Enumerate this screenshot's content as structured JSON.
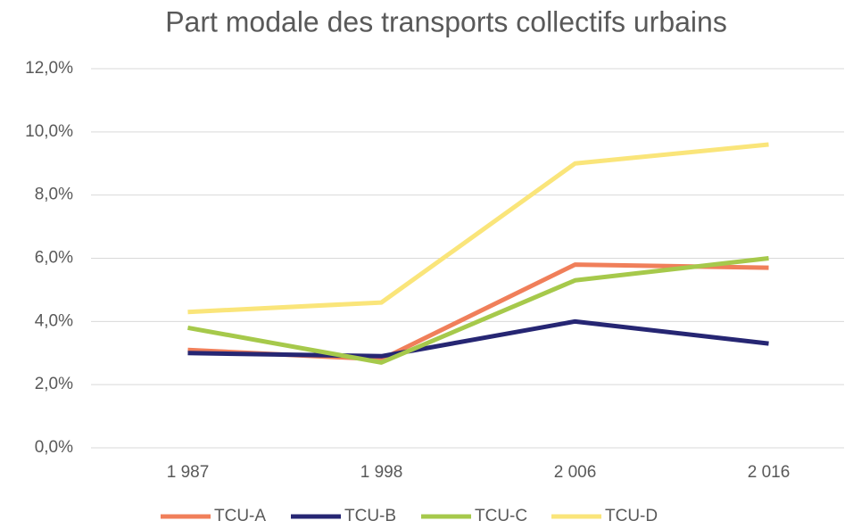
{
  "chart_data": {
    "type": "line",
    "title": "Part modale des transports collectifs urbains",
    "categories": [
      "1 987",
      "1 998",
      "2 006",
      "2 016"
    ],
    "series": [
      {
        "name": "TCU-A",
        "color": "#f07f5a",
        "values": [
          3.1,
          2.8,
          5.8,
          5.7
        ]
      },
      {
        "name": "TCU-B",
        "color": "#262673",
        "values": [
          3.0,
          2.9,
          4.0,
          3.3
        ]
      },
      {
        "name": "TCU-C",
        "color": "#a6c94b",
        "values": [
          3.8,
          2.7,
          5.3,
          6.0
        ]
      },
      {
        "name": "TCU-D",
        "color": "#fae57a",
        "values": [
          4.3,
          4.6,
          9.0,
          9.6
        ]
      }
    ],
    "ylim": [
      0,
      12
    ],
    "yticks": [
      {
        "value": 0,
        "label": "0,0%"
      },
      {
        "value": 2,
        "label": "2,0%"
      },
      {
        "value": 4,
        "label": "4,0%"
      },
      {
        "value": 6,
        "label": "6,0%"
      },
      {
        "value": 8,
        "label": "8,0%"
      },
      {
        "value": 10,
        "label": "10,0%"
      },
      {
        "value": 12,
        "label": "12,0%"
      }
    ],
    "grid": true,
    "legend": "bottom"
  }
}
